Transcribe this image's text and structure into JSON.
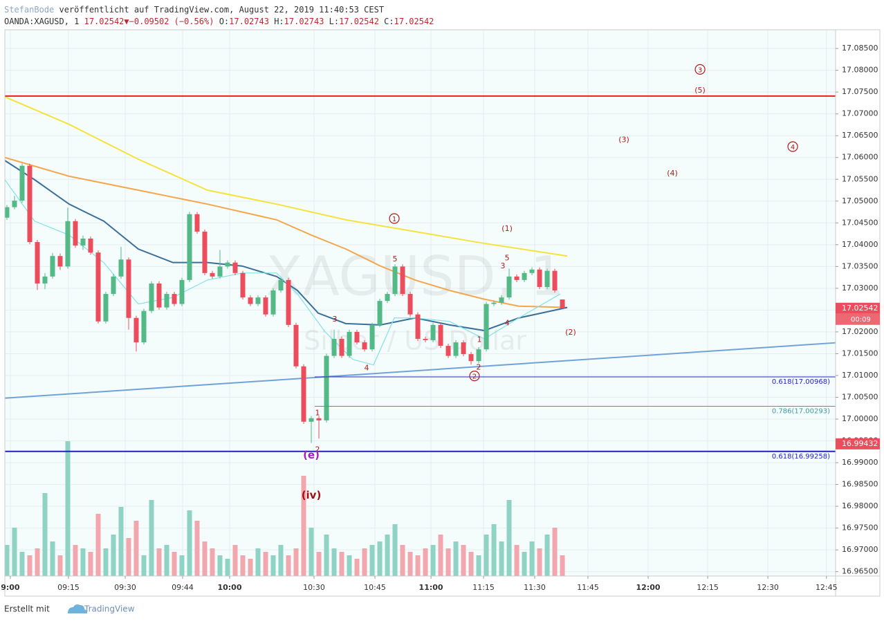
{
  "header": {
    "author": "StefanBode",
    "published": "veröffentlicht auf TradingView.com, August 22, 2019 11:40:53 CEST",
    "symbol": "OANDA:XAGUSD, 1",
    "last": "17.02542",
    "arrow": "▼",
    "change": "−0.09502 (−0.56%)",
    "o_label": "O:",
    "o": "17.02743",
    "h_label": "H:",
    "h": "17.02743",
    "l_label": "L:",
    "l": "17.02542",
    "c_label": "C:",
    "c": "17.02542"
  },
  "footer": {
    "prefix": "Erstellt mit",
    "brand": "TradingView"
  },
  "chart_data": {
    "type": "candlestick",
    "watermark": "XAGUSD, 1",
    "watermark_sub": "Silber / US Dollar",
    "up_color": "#53b987",
    "down_color": "#eb4d5c",
    "volume_up_color": "#8fd3c4",
    "volume_down_color": "#f2a6ad",
    "grid": true,
    "xlim": [
      -0.27,
      108.9
    ],
    "ylim": [
      16.964,
      17.0893
    ],
    "vlim": [
      0,
      200
    ],
    "yticks": [
      {
        "value": 17.085,
        "label": "17.08500"
      },
      {
        "value": 17.08,
        "label": "17.08000"
      },
      {
        "value": 17.075,
        "label": "17.07500"
      },
      {
        "value": 17.07,
        "label": "17.07000"
      },
      {
        "value": 17.065,
        "label": "17.06500"
      },
      {
        "value": 17.06,
        "label": "17.06000"
      },
      {
        "value": 17.055,
        "label": "17.05500"
      },
      {
        "value": 17.05,
        "label": "17.05000"
      },
      {
        "value": 17.045,
        "label": "17.04500"
      },
      {
        "value": 17.04,
        "label": "17.04000"
      },
      {
        "value": 17.035,
        "label": "17.03500"
      },
      {
        "value": 17.03,
        "label": "17.03000"
      },
      {
        "value": 17.025,
        "label": "17.02500"
      },
      {
        "value": 17.02,
        "label": "17.02000"
      },
      {
        "value": 17.015,
        "label": "17.01500"
      },
      {
        "value": 17.01,
        "label": "17.01000"
      },
      {
        "value": 17.005,
        "label": "17.00500"
      },
      {
        "value": 17,
        "label": "17.00000"
      },
      {
        "value": 16.995,
        "label": "16.99500"
      },
      {
        "value": 16.99,
        "label": "16.99000"
      },
      {
        "value": 16.985,
        "label": "16.98500"
      },
      {
        "value": 16.98,
        "label": "16.98000"
      },
      {
        "value": 16.975,
        "label": "16.97500"
      },
      {
        "value": 16.97,
        "label": "16.97000"
      },
      {
        "value": 16.965,
        "label": "16.96500"
      }
    ],
    "xticks": [
      {
        "value": 0.45,
        "label": "9:00",
        "bold": true
      },
      {
        "value": 8.09,
        "label": "09:15"
      },
      {
        "value": 15.55,
        "label": "09:30"
      },
      {
        "value": 23.09,
        "label": "09:44"
      },
      {
        "value": 29.27,
        "label": "10:00",
        "bold": true
      },
      {
        "value": 40.36,
        "label": "10:30"
      },
      {
        "value": 48.36,
        "label": "10:45"
      },
      {
        "value": 55.73,
        "label": "11:00",
        "bold": true
      },
      {
        "value": 62.64,
        "label": "11:15"
      },
      {
        "value": 69.36,
        "label": "11:30"
      },
      {
        "value": 76.36,
        "label": "11:45"
      },
      {
        "value": 84.27,
        "label": "12:00",
        "bold": true
      },
      {
        "value": 92.09,
        "label": "12:15"
      },
      {
        "value": 100,
        "label": "12:30"
      },
      {
        "value": 107.7,
        "label": "12:45"
      }
    ],
    "open": [
      17.0462,
      17.0486,
      17.0501,
      17.0581,
      17.0406,
      17.0311,
      17.0327,
      17.0374,
      17.035,
      17.0454,
      17.0398,
      17.0414,
      17.0382,
      17.0224,
      17.0287,
      17.0327,
      17.0366,
      17.0232,
      17.0176,
      17.0248,
      17.0311,
      17.0256,
      17.0287,
      17.0264,
      17.0319,
      17.047,
      17.043,
      17.0335,
      17.0327,
      17.035,
      17.0359,
      17.0335,
      17.0279,
      17.0264,
      17.0279,
      17.024,
      17.0295,
      17.0319,
      17.0216,
      17.0121,
      16.9994,
      17.0002,
      16.9997,
      17.0145,
      17.0184,
      17.0145,
      17.02,
      17.0176,
      17.016,
      17.0216,
      17.0271,
      17.0287,
      17.035,
      17.0287,
      17.024,
      17.0184,
      17.0181,
      17.0216,
      17.0168,
      17.0145,
      17.0176,
      17.0149,
      17.0133,
      17.016,
      17.0264,
      17.0267,
      17.0279,
      17.0327,
      17.0319,
      17.0335,
      17.0343,
      17.0303,
      17.034,
      17.02743
    ],
    "high": [
      17.0491,
      17.0512,
      17.0586,
      17.0586,
      17.0411,
      17.0335,
      17.0381,
      17.038,
      17.0485,
      17.0459,
      17.0421,
      17.0419,
      17.0387,
      17.0292,
      17.0333,
      17.0395,
      17.0371,
      17.0237,
      17.0253,
      17.0316,
      17.0316,
      17.0292,
      17.0292,
      17.0324,
      17.0475,
      17.0475,
      17.0435,
      17.034,
      17.0388,
      17.0364,
      17.0364,
      17.034,
      17.0284,
      17.0284,
      17.0284,
      17.03,
      17.0324,
      17.0324,
      17.0221,
      17.0126,
      17.0007,
      17.0007,
      17.015,
      17.0205,
      17.0189,
      17.0205,
      17.0205,
      17.0181,
      17.0221,
      17.0276,
      17.0292,
      17.0355,
      17.0355,
      17.0292,
      17.0245,
      17.0189,
      17.0221,
      17.0221,
      17.0173,
      17.0181,
      17.0181,
      17.0154,
      17.0165,
      17.0269,
      17.0272,
      17.0284,
      17.0345,
      17.0332,
      17.034,
      17.0348,
      17.0348,
      17.0345,
      17.0345,
      17.02743
    ],
    "low": [
      17.0457,
      17.0481,
      17.0496,
      17.0401,
      17.0296,
      17.0298,
      17.0322,
      17.0342,
      17.0345,
      17.0393,
      17.0388,
      17.0377,
      17.0219,
      17.0219,
      17.0282,
      17.0322,
      17.0205,
      17.0155,
      17.0171,
      17.0243,
      17.0251,
      17.0251,
      17.0259,
      17.0259,
      17.0314,
      17.0425,
      17.033,
      17.0322,
      17.0322,
      17.0345,
      17.033,
      17.0274,
      17.0259,
      17.0259,
      17.0235,
      17.0235,
      17.029,
      17.0211,
      17.0116,
      16.9989,
      16.9945,
      16.9955,
      16.9992,
      17.014,
      17.014,
      17.014,
      17.0171,
      17.0155,
      17.0155,
      17.0211,
      17.0266,
      17.0282,
      17.0282,
      17.0235,
      17.0179,
      17.0176,
      17.0176,
      17.0163,
      17.014,
      17.014,
      17.0144,
      17.0125,
      17.0128,
      17.0155,
      17.0259,
      17.0262,
      17.0274,
      17.0314,
      17.0314,
      17.033,
      17.0298,
      17.0298,
      17.029,
      17.02542
    ],
    "close": [
      17.0486,
      17.0501,
      17.0581,
      17.0406,
      17.0311,
      17.0327,
      17.0374,
      17.035,
      17.0454,
      17.0398,
      17.0414,
      17.0382,
      17.0224,
      17.0287,
      17.0327,
      17.0366,
      17.0232,
      17.0176,
      17.0248,
      17.0311,
      17.0256,
      17.0287,
      17.0264,
      17.0319,
      17.047,
      17.043,
      17.0335,
      17.0327,
      17.035,
      17.0359,
      17.0335,
      17.0279,
      17.0264,
      17.0279,
      17.024,
      17.0295,
      17.0319,
      17.0216,
      17.0121,
      16.9994,
      17.0002,
      16.9997,
      17.0145,
      17.0184,
      17.0145,
      17.02,
      17.0176,
      17.016,
      17.0216,
      17.0271,
      17.0287,
      17.035,
      17.0287,
      17.024,
      17.0184,
      17.0181,
      17.0216,
      17.0168,
      17.0145,
      17.0176,
      17.0149,
      17.0133,
      17.016,
      17.0264,
      17.0267,
      17.0279,
      17.0327,
      17.0319,
      17.0335,
      17.0343,
      17.0303,
      17.034,
      17.0295,
      17.02542
    ],
    "volume": [
      45,
      70,
      35,
      30,
      40,
      120,
      50,
      30,
      195,
      45,
      40,
      35,
      90,
      40,
      60,
      100,
      55,
      80,
      30,
      110,
      40,
      45,
      35,
      30,
      95,
      80,
      50,
      40,
      30,
      25,
      45,
      30,
      25,
      40,
      35,
      30,
      45,
      30,
      40,
      145,
      70,
      35,
      60,
      40,
      35,
      30,
      25,
      40,
      45,
      50,
      60,
      75,
      45,
      35,
      30,
      40,
      45,
      60,
      40,
      50,
      45,
      35,
      30,
      60,
      75,
      50,
      110,
      45,
      35,
      50,
      40,
      60,
      70,
      30
    ],
    "lines": [
      {
        "color": "#f5e33a",
        "width": 2,
        "x": [
          -0.27,
          8.18,
          17.27,
          26.36,
          35.45,
          44.55,
          53.64,
          62.73,
          73.64
        ],
        "values": [
          17.0739,
          17.0676,
          17.0596,
          17.0525,
          17.0493,
          17.0457,
          17.043,
          17.0403,
          17.0374
        ]
      },
      {
        "color": "#f5a64a",
        "width": 2,
        "x": [
          -0.27,
          8.18,
          17.27,
          26.36,
          35.45,
          40,
          44.55,
          49.09,
          53.64,
          58.18,
          62.73,
          67.27,
          73.64
        ],
        "values": [
          17.06,
          17.0557,
          17.0525,
          17.0493,
          17.0457,
          17.0422,
          17.039,
          17.0351,
          17.0319,
          17.0295,
          17.0275,
          17.0259,
          17.0256
        ]
      },
      {
        "color": "#3a6f9a",
        "width": 2,
        "x": [
          -0.27,
          3.64,
          8.18,
          12.73,
          17.27,
          21.82,
          26.36,
          30.91,
          35.45,
          38.18,
          40.91,
          44.55,
          49.09,
          53.64,
          58.18,
          62.73,
          67.27,
          73.64
        ],
        "values": [
          17.0593,
          17.0549,
          17.0493,
          17.0454,
          17.039,
          17.0359,
          17.0359,
          17.0351,
          17.0327,
          17.0295,
          17.0243,
          17.0219,
          17.0216,
          17.0232,
          17.0216,
          17.0203,
          17.0232,
          17.0256
        ]
      },
      {
        "color": "#7fe3e6",
        "width": 1.2,
        "x": [
          -0.27,
          3.64,
          8.18,
          12.73,
          17.27,
          21.82,
          26.36,
          30.91,
          35.45,
          38.18,
          41.82,
          45.45,
          48.18,
          50.91,
          53.64,
          58.18,
          62.73,
          67.27,
          72.73
        ],
        "values": [
          17.0549,
          17.0454,
          17.0422,
          17.0359,
          17.0264,
          17.0279,
          17.0319,
          17.0335,
          17.0335,
          17.0287,
          17.02,
          17.0137,
          17.0124,
          17.0232,
          17.0232,
          17.0224,
          17.0184,
          17.0232,
          17.0287
        ]
      }
    ],
    "trendline": {
      "color": "#6fa3d8",
      "x": [
        -0.27,
        108.9
      ],
      "values": [
        17.0048,
        17.0175
      ]
    },
    "hlines": [
      {
        "value": 17.0741,
        "color": "#e02020",
        "width": 2,
        "from": -0.27
      },
      {
        "value": 17.00968,
        "color": "#2424c8",
        "width": 1,
        "from": 40.45,
        "label": "0.618(17.00968)"
      },
      {
        "value": 17.00293,
        "color": "#3b9aa8",
        "width": 1,
        "from": 40.45,
        "label": "0.786(17.00293)"
      },
      {
        "value": 16.99258,
        "color": "#2020c8",
        "width": 2,
        "from": -0.27,
        "label": "0.618(16.99258)"
      }
    ],
    "price_markers": [
      {
        "value": 17.02542,
        "sub": "00:09"
      },
      {
        "value": 16.99432
      }
    ],
    "annotations": [
      {
        "text": "3",
        "x": 91.09,
        "y": 17.0802,
        "circled": true,
        "color": "#b01818"
      },
      {
        "text": "(5)",
        "x": 91.09,
        "y": 17.0755,
        "color": "#b01818"
      },
      {
        "text": "(3)",
        "x": 81.09,
        "y": 17.0642,
        "color": "#b01818"
      },
      {
        "text": "4",
        "x": 103.27,
        "y": 17.0625,
        "circled": true,
        "color": "#b01818"
      },
      {
        "text": "(4)",
        "x": 87.45,
        "y": 17.0565,
        "color": "#b01818"
      },
      {
        "text": "1",
        "x": 50.91,
        "y": 17.046,
        "circled": true,
        "color": "#b01818"
      },
      {
        "text": "(1)",
        "x": 65.73,
        "y": 17.0438,
        "color": "#b01818"
      },
      {
        "text": "5",
        "x": 51,
        "y": 17.0368,
        "color": "#b01818"
      },
      {
        "text": "3",
        "x": 65.18,
        "y": 17.0352,
        "color": "#b01818"
      },
      {
        "text": "5",
        "x": 65.73,
        "y": 17.037,
        "color": "#b01818"
      },
      {
        "text": "3",
        "x": 43.09,
        "y": 17.023,
        "color": "#b01818"
      },
      {
        "text": "4",
        "x": 65.73,
        "y": 17.0221,
        "color": "#b01818"
      },
      {
        "text": "(2)",
        "x": 74.09,
        "y": 17.02,
        "color": "#b01818"
      },
      {
        "text": "1",
        "x": 62.09,
        "y": 17.0183,
        "color": "#b01818"
      },
      {
        "text": "4",
        "x": 47.27,
        "y": 17.0118,
        "color": "#b01818"
      },
      {
        "text": "2",
        "x": 61.45,
        "y": 17.0099,
        "circled": true,
        "color": "#b01818"
      },
      {
        "text": "2",
        "x": 62,
        "y": 17.012,
        "color": "#b01818"
      },
      {
        "text": "1",
        "x": 40.82,
        "y": 17.0015,
        "color": "#b01818"
      },
      {
        "text": "2",
        "x": 40.82,
        "y": 16.9931,
        "color": "#b01818"
      },
      {
        "text": "(e)",
        "x": 40,
        "y": 16.9918,
        "color": "#a020c0",
        "big": true
      },
      {
        "text": "(iv)",
        "x": 40,
        "y": 16.9826,
        "color": "#a01010",
        "big": true
      }
    ]
  }
}
